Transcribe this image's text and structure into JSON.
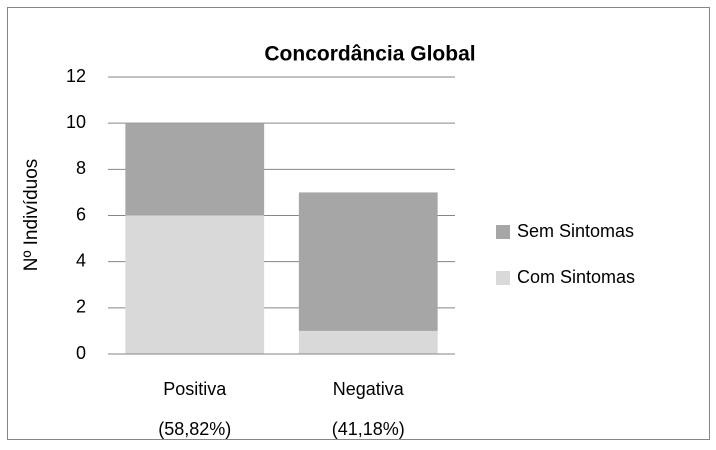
{
  "chart_data": {
    "type": "stacked_bar",
    "title": "Concordância Global",
    "y_label": "Nº Indivíduos",
    "categories": [
      [
        "Positiva",
        "(58,82%)"
      ],
      [
        "Negativa",
        "(41,18%)"
      ]
    ],
    "series": [
      {
        "name": "Com Sintomas",
        "color": "#d9d9d9",
        "values": [
          6,
          1
        ]
      },
      {
        "name": "Sem Sintomas",
        "color": "#a6a6a6",
        "values": [
          4,
          6
        ]
      }
    ],
    "ylim": [
      0,
      12
    ],
    "yticks": [
      0,
      2,
      4,
      6,
      8,
      10,
      12
    ],
    "grid": true,
    "legend": "right"
  }
}
